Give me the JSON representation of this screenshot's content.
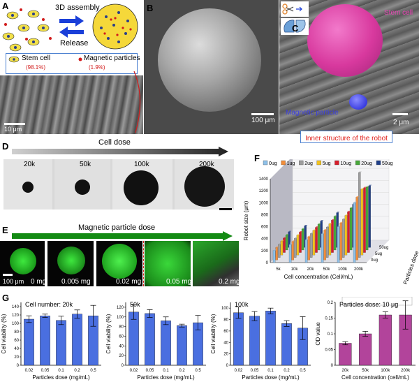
{
  "panels": {
    "A": {
      "label": "A",
      "assembly_text": "3D assembly",
      "release_text": "Release",
      "legend": {
        "stem_cell": "Stem cell",
        "stem_cell_pct": "(98.1%)",
        "magnetic": "Magnetic particles",
        "magnetic_pct": "(1.9%)"
      },
      "scalebar": "10 μm"
    },
    "B": {
      "label": "B",
      "scalebar": "100 μm"
    },
    "C": {
      "label": "C",
      "stem_cell": "Stem cell",
      "magnetic_particle": "Magnetic particle",
      "scalebar": "2 μm",
      "caption": "Inner structure of the robot"
    },
    "D": {
      "label": "D",
      "title": "Cell dose",
      "doses": [
        "20k",
        "50k",
        "100k",
        "200k"
      ]
    },
    "E": {
      "label": "E",
      "title": "Magnetic particle dose",
      "doses": [
        "0 mg",
        "0.005 mg",
        "0.02 mg",
        "0.05 mg",
        "0.2 mg"
      ],
      "scalebar": "100 μm"
    },
    "F": {
      "label": "F"
    },
    "G": {
      "label": "G"
    }
  },
  "colors": {
    "arrow_blue": "#1a3fd9",
    "arrow_green": "#138a13",
    "bar_blue": "#4a6fe0",
    "bar_magenta": "#b2449b",
    "stem_pink": "#d8399e",
    "red_caption": "#e0201b"
  },
  "chart_data": [
    {
      "id": "F",
      "type": "bar",
      "title": "",
      "xlabel": "Cell concentration (Cell/mL)",
      "ylabel": "Robot size (μm)",
      "zlabel": "Particles dose",
      "categories": [
        "5k",
        "10k",
        "20k",
        "50k",
        "100k",
        "200k"
      ],
      "depth_labels": [
        "0ug",
        "5ug",
        "50ug"
      ],
      "ylim": [
        0,
        1400
      ],
      "yticks": [
        0,
        200,
        400,
        600,
        800,
        1000,
        1200,
        1400
      ],
      "series": [
        {
          "name": "0ug",
          "color": "#8ec0e8",
          "values": [
            200,
            300,
            380,
            480,
            600,
            1000
          ]
        },
        {
          "name": "1ug",
          "color": "#f28d3a",
          "values": [
            210,
            310,
            390,
            500,
            620,
            1050
          ]
        },
        {
          "name": "2ug",
          "color": "#9e9e9e",
          "values": [
            220,
            320,
            400,
            510,
            640,
            1420
          ]
        },
        {
          "name": "5ug",
          "color": "#f2c21d",
          "values": [
            230,
            330,
            410,
            520,
            660,
            1100
          ]
        },
        {
          "name": "10ug",
          "color": "#d81e2c",
          "values": [
            240,
            340,
            420,
            540,
            680,
            1080
          ]
        },
        {
          "name": "20ug",
          "color": "#48a83a",
          "values": [
            250,
            350,
            430,
            560,
            700,
            1050
          ]
        },
        {
          "name": "50ug",
          "color": "#1f3f8a",
          "values": [
            260,
            360,
            440,
            580,
            720,
            1030
          ]
        }
      ]
    },
    {
      "id": "G1",
      "type": "bar",
      "title": "Cell number: 20k",
      "xlabel": "Particles dose (mg/mL)",
      "ylabel": "Cell viability (%)",
      "categories": [
        "0.02",
        "0.05",
        "0.1",
        "0.2",
        "0.5"
      ],
      "values": [
        110,
        118,
        107,
        122,
        118
      ],
      "errors": [
        8,
        4,
        10,
        10,
        25
      ],
      "ylim": [
        0,
        150
      ],
      "yticks": [
        0,
        20,
        40,
        60,
        80,
        100,
        120,
        140
      ],
      "color": "#4a6fe0"
    },
    {
      "id": "G2",
      "type": "bar",
      "title": "50k",
      "xlabel": "Particles dose (mg/mL)",
      "ylabel": "Cell viability (%)",
      "categories": [
        "0.02",
        "0.05",
        "0.1",
        "0.2",
        "0.5"
      ],
      "values": [
        110,
        107,
        92,
        82,
        88
      ],
      "errors": [
        15,
        8,
        8,
        3,
        15
      ],
      "ylim": [
        0,
        130
      ],
      "yticks": [
        0,
        20,
        40,
        60,
        80,
        100,
        120
      ],
      "color": "#4a6fe0"
    },
    {
      "id": "G3",
      "type": "bar",
      "title": "100k",
      "xlabel": "Particles dose (mg/mL)",
      "ylabel": "Cell viability (%)",
      "categories": [
        "0.02",
        "0.05",
        "0.1",
        "0.2",
        "0.5"
      ],
      "values": [
        92,
        86,
        95,
        73,
        65
      ],
      "errors": [
        10,
        8,
        5,
        5,
        20
      ],
      "ylim": [
        0,
        110
      ],
      "yticks": [
        0,
        20,
        40,
        60,
        80,
        100
      ],
      "color": "#4a6fe0"
    },
    {
      "id": "G4",
      "type": "bar",
      "title": "Particles dose: 10 μg",
      "xlabel": "Cell concentration (cell/mL)",
      "ylabel": "OD value",
      "categories": [
        "20k",
        "50k",
        "100k",
        "200k"
      ],
      "values": [
        0.07,
        0.1,
        0.16,
        0.16
      ],
      "errors": [
        0.005,
        0.008,
        0.01,
        0.045
      ],
      "ylim": [
        0,
        0.2
      ],
      "yticks": [
        0,
        0.05,
        0.1,
        0.15,
        0.2
      ],
      "color": "#b2449b"
    }
  ]
}
